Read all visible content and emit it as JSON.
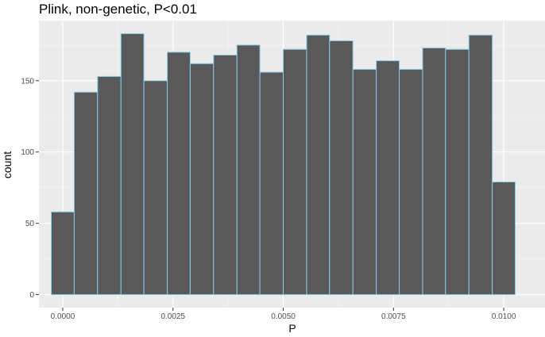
{
  "chart_data": {
    "type": "bar",
    "title": "Plink, non-genetic, P<0.01",
    "xlabel": "P",
    "ylabel": "count",
    "xlim": [
      -0.00026,
      0.01026
    ],
    "ylim": [
      0,
      183
    ],
    "x_ticks": [
      {
        "value": 0.0,
        "label": "0.0000"
      },
      {
        "value": 0.0025,
        "label": "0.0025"
      },
      {
        "value": 0.005,
        "label": "0.0050"
      },
      {
        "value": 0.0075,
        "label": "0.0075"
      },
      {
        "value": 0.01,
        "label": "0.0100"
      }
    ],
    "y_ticks": [
      {
        "value": 0,
        "label": "0"
      },
      {
        "value": 50,
        "label": "50"
      },
      {
        "value": 100,
        "label": "100"
      },
      {
        "value": 150,
        "label": "150"
      }
    ],
    "bin_edges": [
      -0.00026,
      0.00026,
      0.00079,
      0.00132,
      0.00184,
      0.00237,
      0.00289,
      0.00342,
      0.00395,
      0.00447,
      0.005,
      0.00553,
      0.00605,
      0.00658,
      0.00711,
      0.00763,
      0.00816,
      0.00868,
      0.00921,
      0.00974,
      0.01026
    ],
    "values": [
      58,
      142,
      153,
      183,
      150,
      170,
      162,
      168,
      175,
      156,
      172,
      182,
      178,
      158,
      164,
      158,
      173,
      172,
      182,
      79
    ],
    "grid": true,
    "colors": {
      "panel_background": "#ebebeb",
      "grid_major": "#ffffff",
      "grid_minor": "#f5f5f5",
      "bar_fill": "#595959",
      "bar_outline": "#87ceeb",
      "tick_text": "#4d4d4d",
      "tick_mark": "#333333"
    }
  }
}
